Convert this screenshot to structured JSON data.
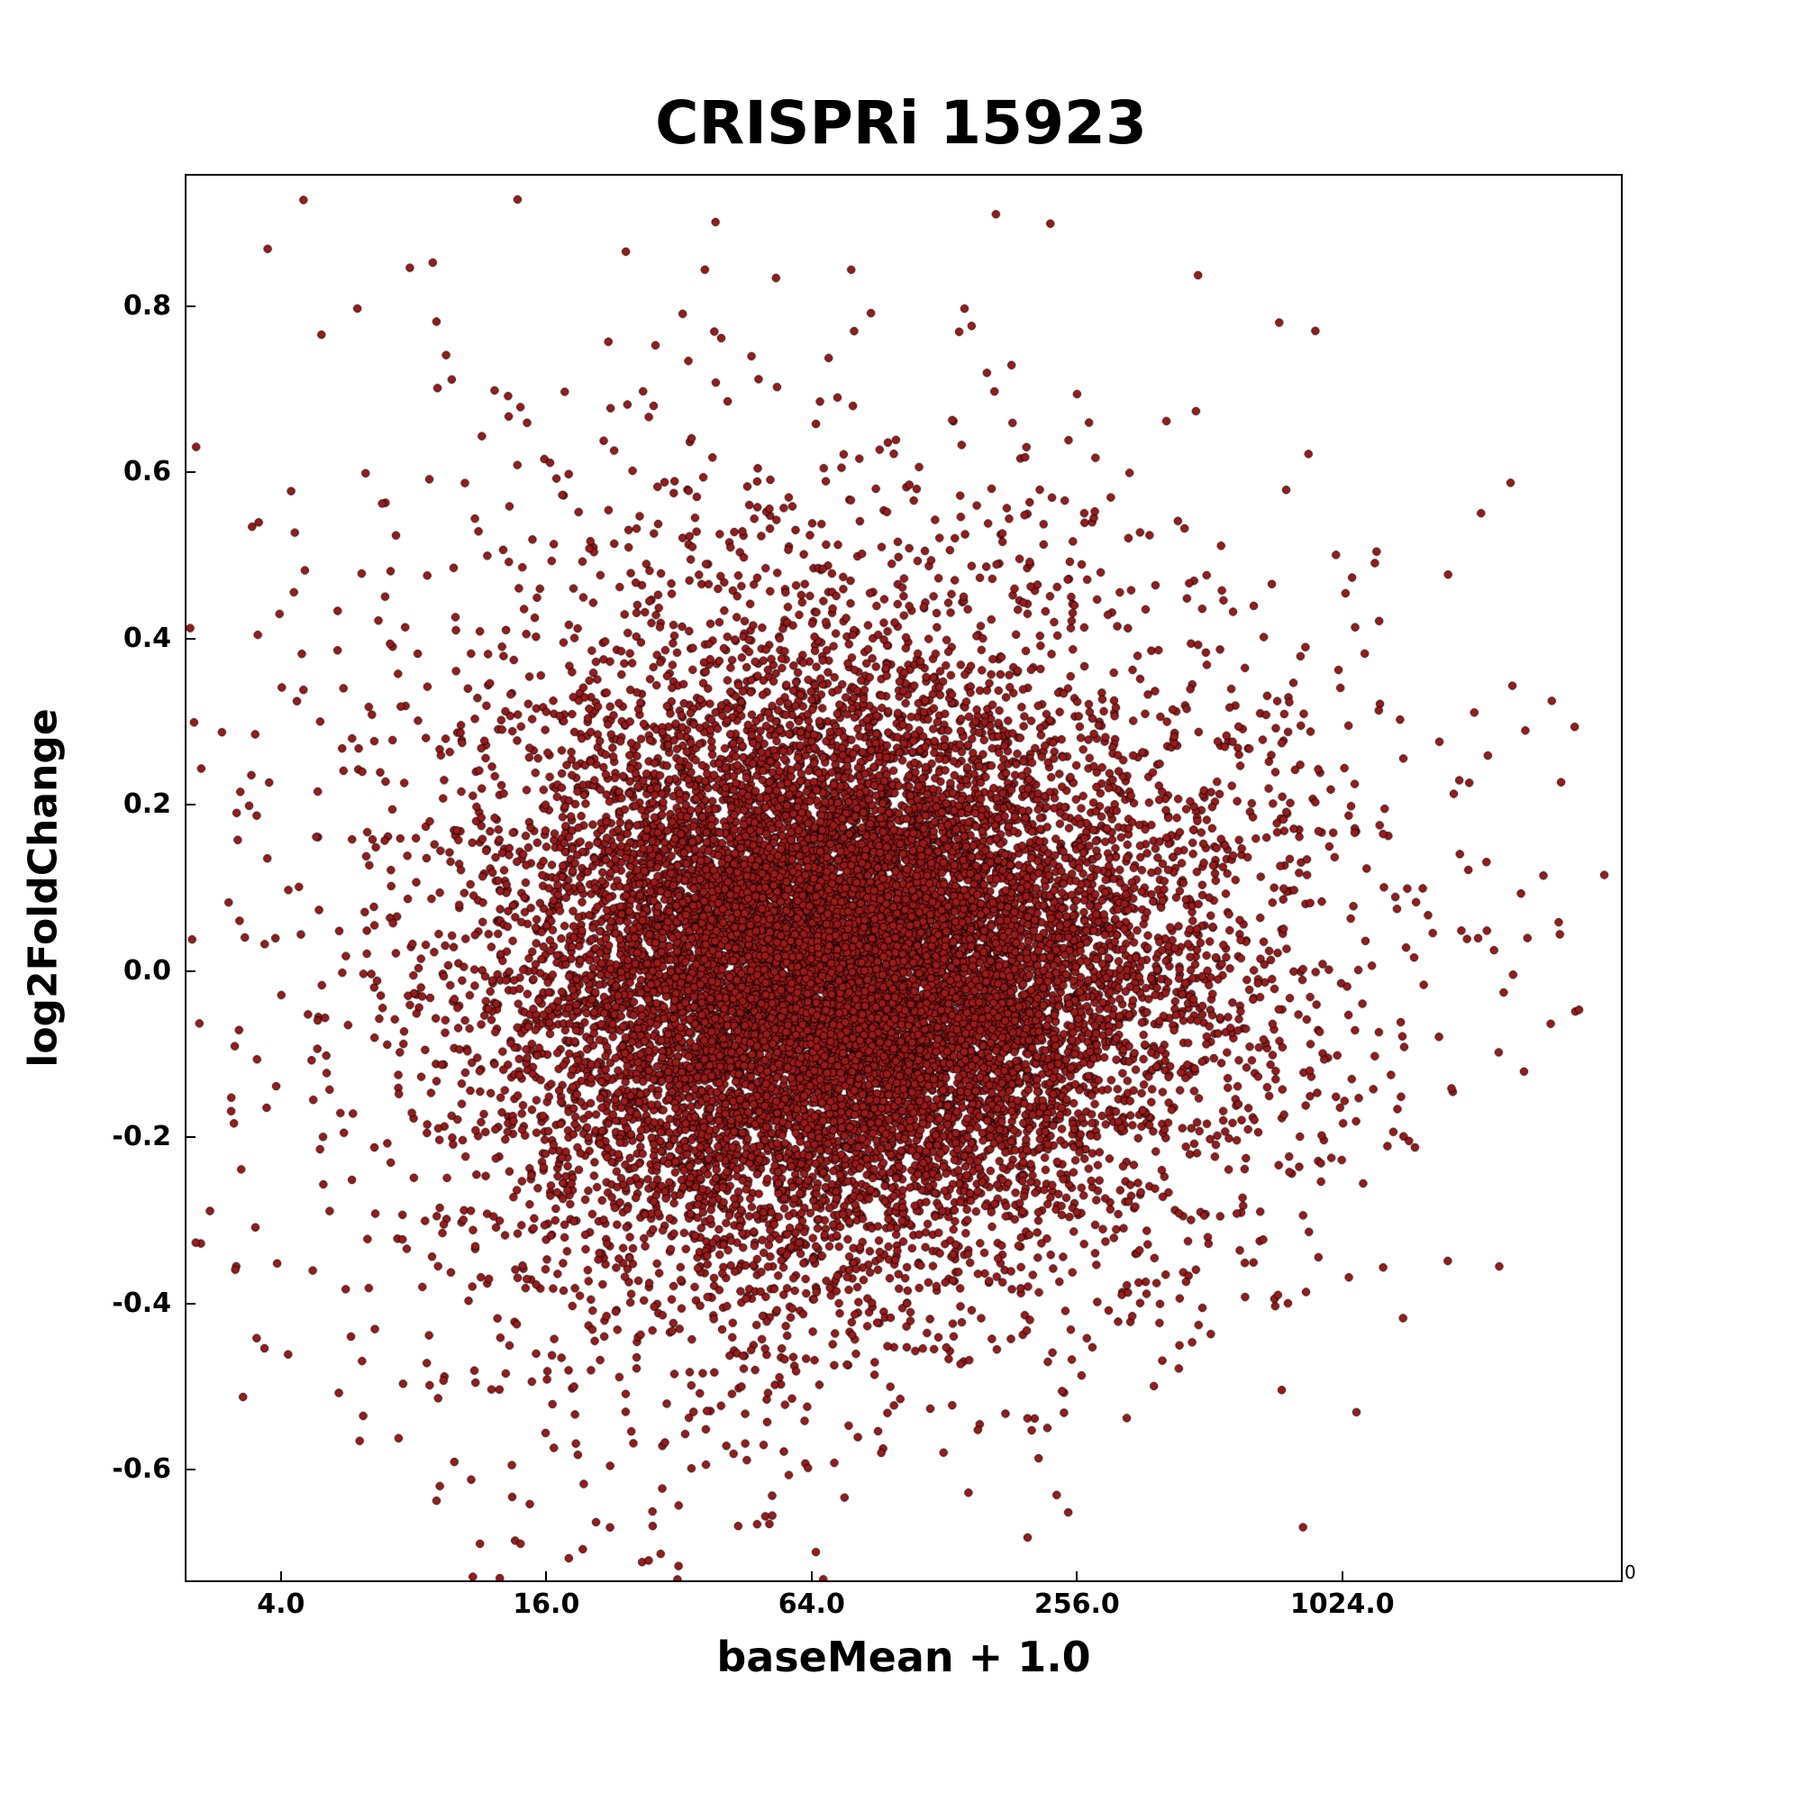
{
  "title": "CRISPRi 15923",
  "axes": {
    "xlabel": "baseMean + 1.0",
    "ylabel": "log2FoldChange",
    "x_ticks": [
      "4.0",
      "16.0",
      "64.0",
      "256.0",
      "1024.0"
    ],
    "y_ticks": [
      "0.8",
      "0.6",
      "0.4",
      "0.2",
      "0.0",
      "-0.2",
      "-0.4",
      "-0.6"
    ],
    "corner_label": "0"
  },
  "chart_data": {
    "type": "scatter",
    "title": "CRISPRi 15923",
    "xlabel": "baseMean + 1.0",
    "ylabel": "log2FoldChange",
    "x_scale": "log2",
    "x_tick_values": [
      4,
      16,
      64,
      256,
      1024
    ],
    "y_tick_values": [
      0.8,
      0.6,
      0.4,
      0.2,
      0.0,
      -0.2,
      -0.4,
      -0.6
    ],
    "x_range_log2": [
      1.288,
      12.1
    ],
    "y_range": [
      -0.733,
      0.957
    ],
    "grid": false,
    "legend": "none",
    "n_points": 15923,
    "marker": {
      "fill": "#9e1a1a",
      "edge": "#000000",
      "radius_px": 4.2,
      "edge_width": 0.9
    },
    "distribution": {
      "note": "dense single cloud centered near baseMean 64-128 and log2FoldChange 0; spread roughly -0.7 to +0.95, funnel narrowing at high baseMean",
      "seed": 42,
      "components": [
        {
          "weight": 0.62,
          "x_log2_mean": 6.15,
          "x_log2_sd": 1.05,
          "y_mean": -0.005,
          "y_sd": 0.145
        },
        {
          "weight": 0.28,
          "x_log2_mean": 6.4,
          "x_log2_sd": 1.55,
          "y_mean": 0.02,
          "y_sd": 0.24
        },
        {
          "weight": 0.1,
          "x_log2_mean": 6.3,
          "x_log2_sd": 2.3,
          "y_mean": 0.04,
          "y_sd": 0.33
        }
      ],
      "funnel": {
        "ref_log2": 6.2,
        "slope": -0.06,
        "min_scale": 0.72,
        "max_scale": 1.5
      }
    }
  }
}
